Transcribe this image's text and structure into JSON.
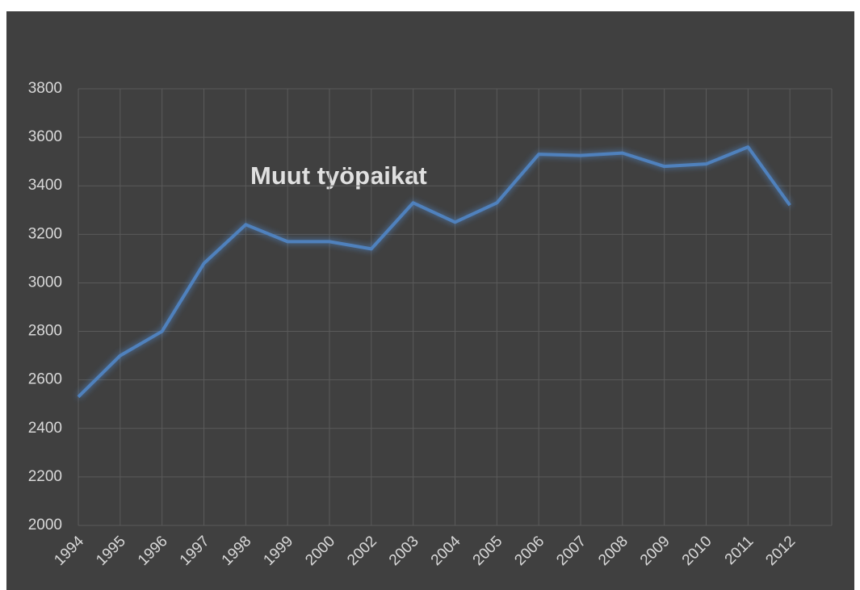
{
  "chart_data": {
    "type": "line",
    "title": "Muut työpaikat",
    "categories": [
      "1994",
      "1995",
      "1996",
      "1997",
      "1998",
      "1999",
      "2000",
      "2002",
      "2003",
      "2004",
      "2005",
      "2006",
      "2007",
      "2008",
      "2009",
      "2010",
      "2011",
      "2012"
    ],
    "series": [
      {
        "name": "Muut työpaikat",
        "color": "#4f81bd",
        "values": [
          2530,
          2700,
          2800,
          3080,
          3240,
          3170,
          3170,
          3140,
          3330,
          3250,
          3330,
          3530,
          3525,
          3535,
          3480,
          3490,
          3560,
          3320
        ]
      }
    ],
    "ylim": [
      2000,
      3800
    ],
    "yticks": [
      2000,
      2200,
      2400,
      2600,
      2800,
      3000,
      3200,
      3400,
      3600,
      3800
    ],
    "grid": true
  }
}
